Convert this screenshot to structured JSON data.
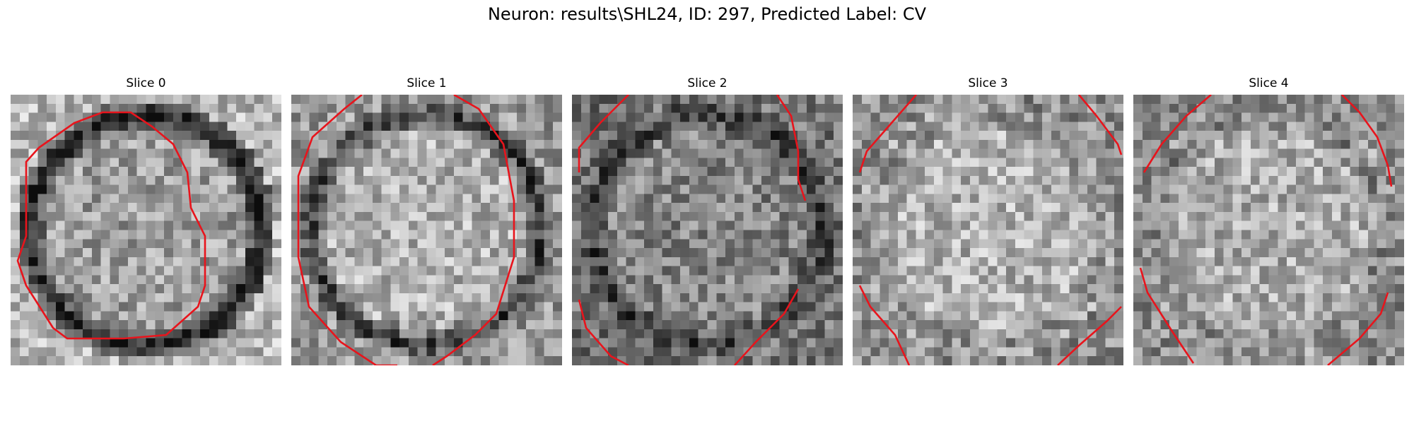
{
  "figure": {
    "title": "Neuron: results\\SHL24, ID: 297, Predicted Label: CV"
  },
  "slices": [
    {
      "title": "Slice 0",
      "contour_color": "#e8141c",
      "colormap": "gray"
    },
    {
      "title": "Slice 1",
      "contour_color": "#e8141c",
      "colormap": "gray"
    },
    {
      "title": "Slice 2",
      "contour_color": "#e8141c",
      "colormap": "gray"
    },
    {
      "title": "Slice 3",
      "contour_color": "#e8141c",
      "colormap": "gray"
    },
    {
      "title": "Slice 4",
      "contour_color": "#e8141c",
      "colormap": "gray"
    }
  ]
}
